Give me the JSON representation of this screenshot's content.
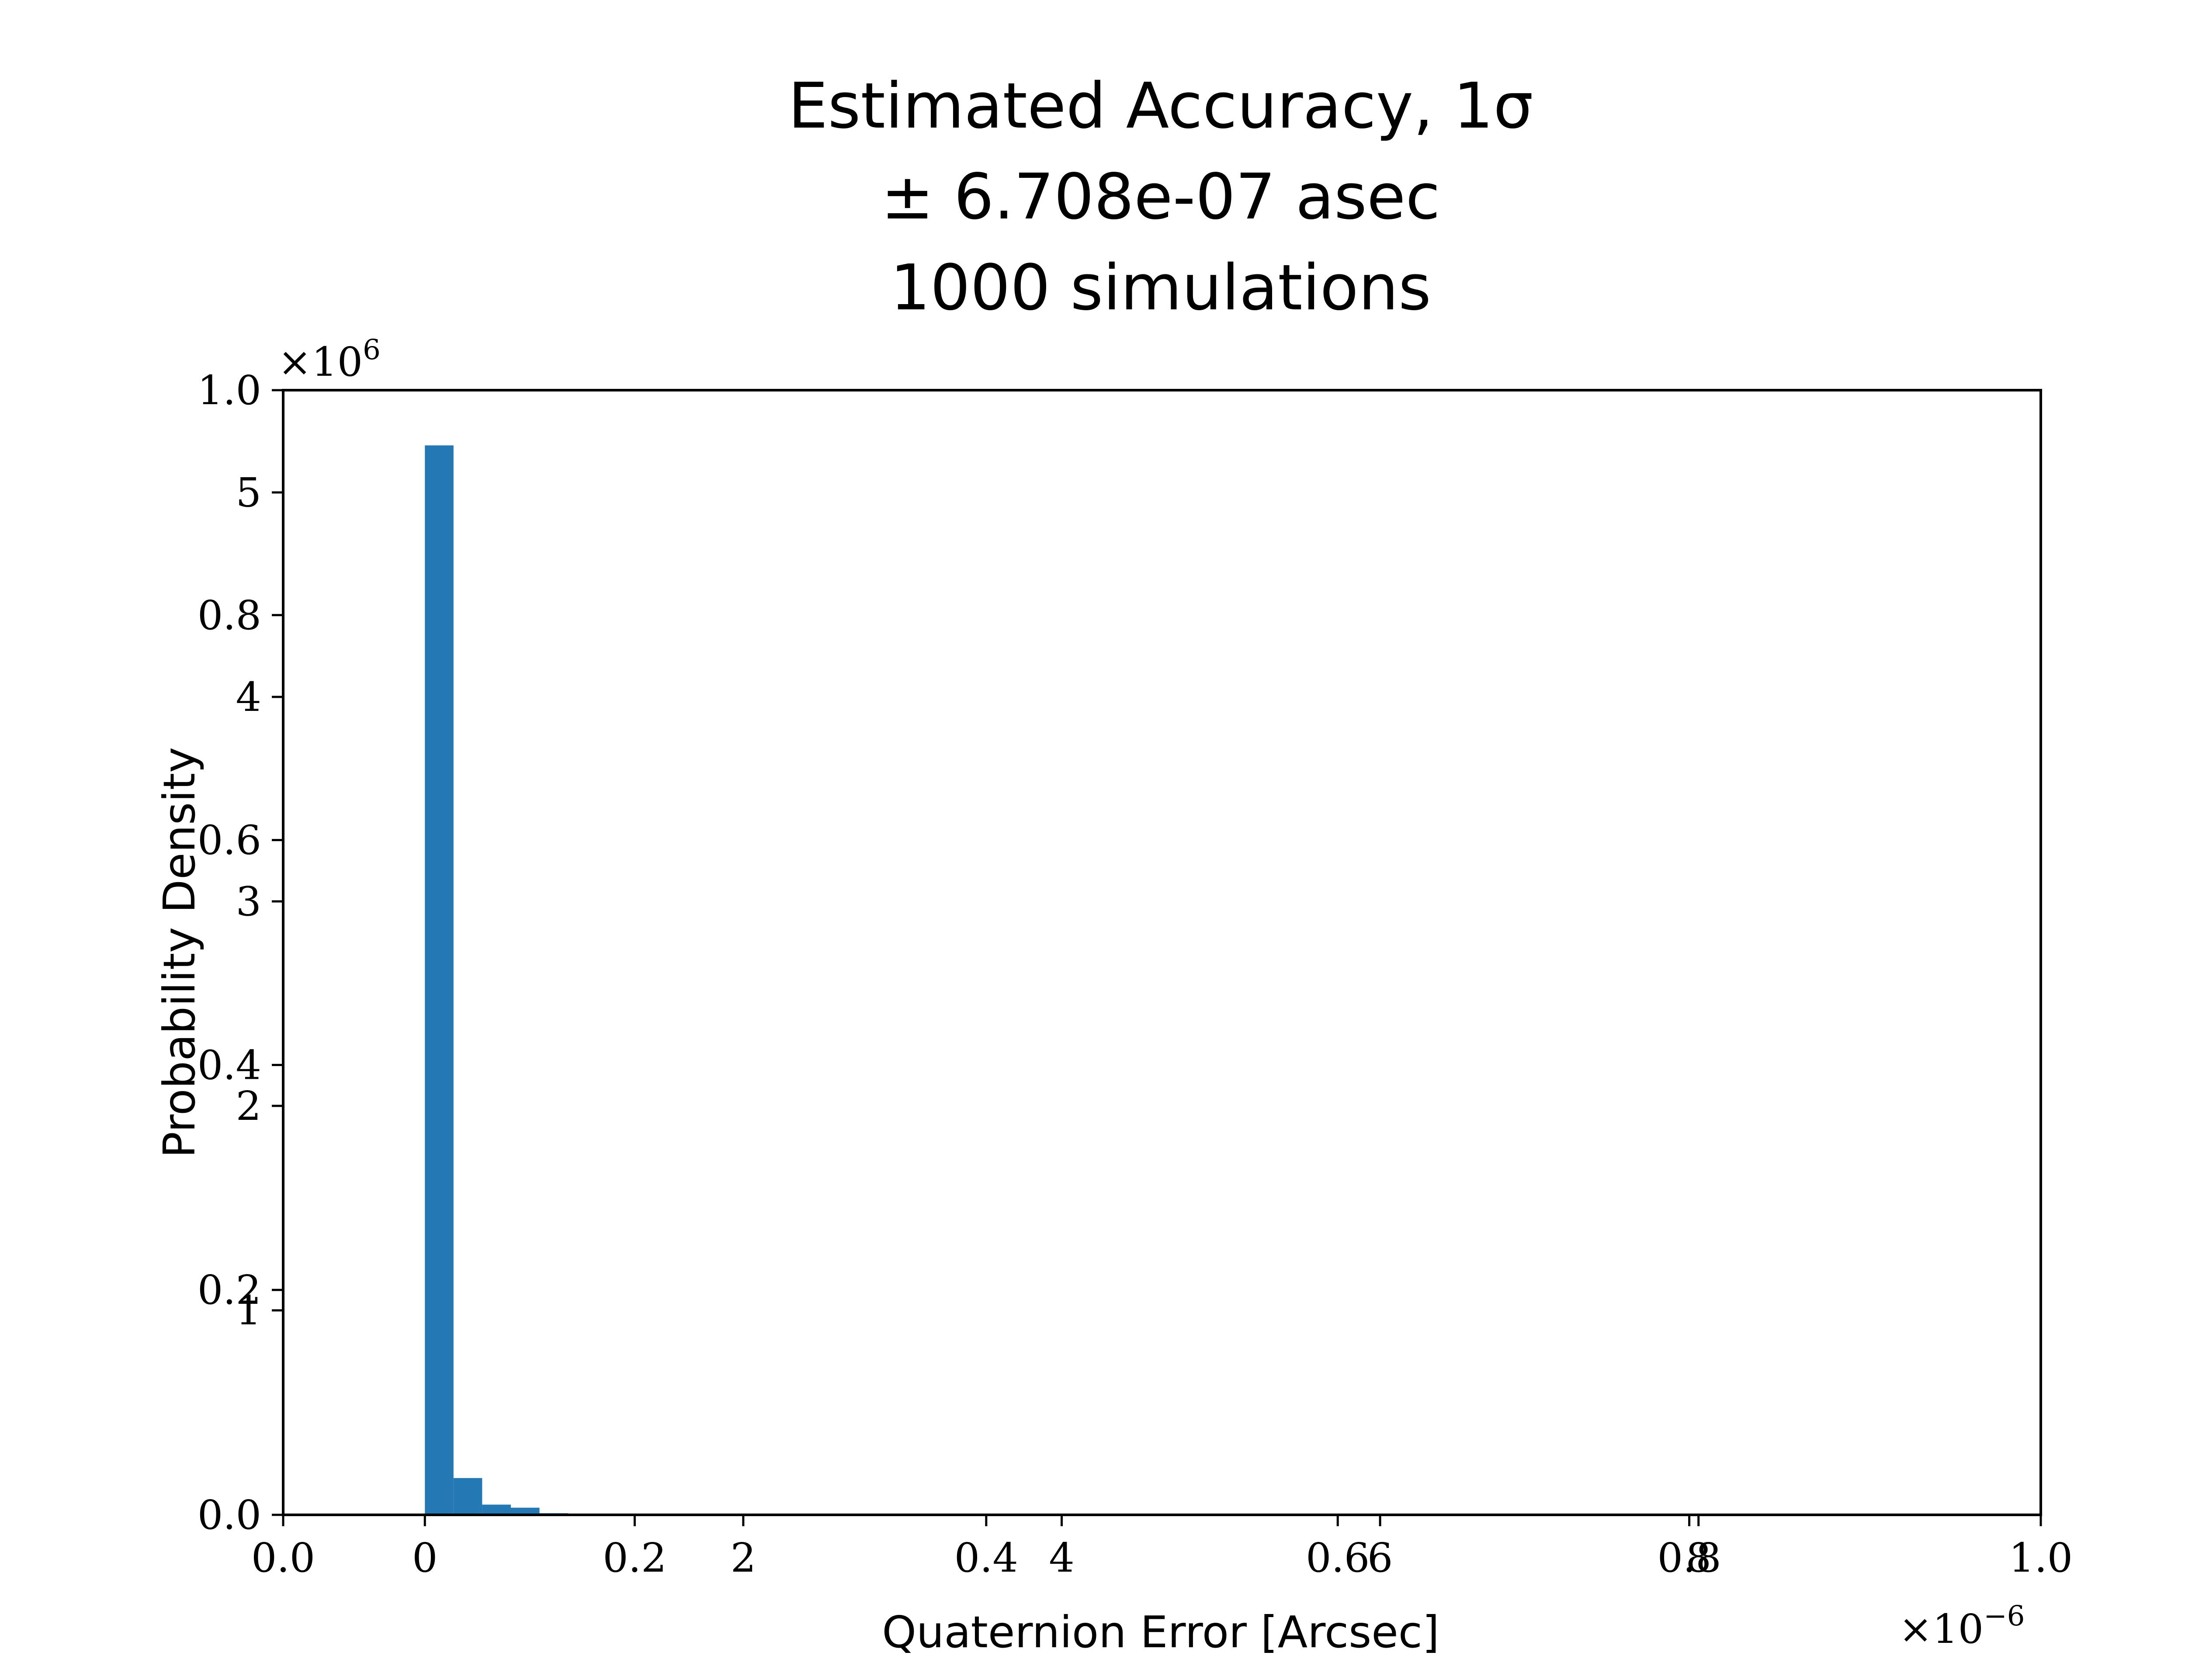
{
  "chart_data": {
    "type": "bar",
    "title_lines": [
      "Estimated Accuracy, 1σ",
      "± 6.708e-07 asec",
      "1000 simulations"
    ],
    "xlabel": "Quaternion Error [Arcsec]",
    "ylabel": "Probability Density",
    "x_multiplier": "×10",
    "x_multiplier_exp": "−6",
    "y_multiplier": "×10",
    "y_multiplier_exp": "6",
    "xlim": [
      0,
      1
    ],
    "ylim": [
      0,
      1
    ],
    "x_ticks_frame": [
      "0.0",
      "0.2",
      "0.4",
      "0.6",
      "0.8",
      "1.0"
    ],
    "y_ticks_frame": [
      "0.0",
      "0.2",
      "0.4",
      "0.6",
      "0.8",
      "1.0"
    ],
    "data_xlim": [
      -0.89,
      10.15
    ],
    "data_ylim": [
      0,
      5.5
    ],
    "x_ticks_data": [
      0,
      2,
      4,
      6,
      8
    ],
    "y_ticks_data": [
      1,
      2,
      3,
      4,
      5
    ],
    "x_tick_labels_data": [
      "0",
      "2",
      "4",
      "6",
      "8"
    ],
    "y_tick_labels_data": [
      "1",
      "2",
      "3",
      "4",
      "5"
    ],
    "bin_edges": [
      0.0,
      0.18,
      0.36,
      0.54,
      0.72,
      0.9
    ],
    "values": [
      5.23,
      0.18,
      0.05,
      0.035,
      0.008
    ],
    "bar_color": "#2478b4",
    "grid": false
  }
}
